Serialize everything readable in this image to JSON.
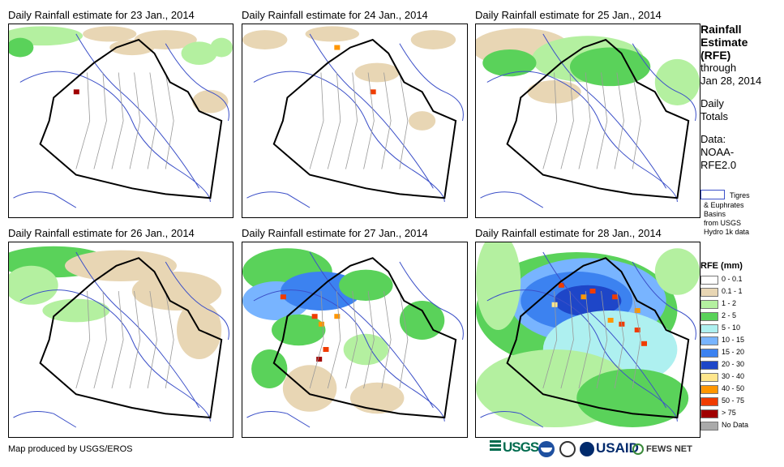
{
  "panels": [
    {
      "title": "Daily Rainfall estimate for 23 Jan., 2014",
      "day": 23
    },
    {
      "title": "Daily Rainfall estimate for 24 Jan., 2014",
      "day": 24
    },
    {
      "title": "Daily Rainfall estimate for 25 Jan., 2014",
      "day": 25
    },
    {
      "title": "Daily Rainfall estimate for 26 Jan., 2014",
      "day": 26
    },
    {
      "title": "Daily Rainfall estimate for 27 Jan., 2014",
      "day": 27
    },
    {
      "title": "Daily Rainfall estimate for 28 Jan., 2014",
      "day": 28
    }
  ],
  "side": {
    "title_line1": "Rainfall",
    "title_line2": "Estimate",
    "title_line3": "(RFE)",
    "through": "through",
    "date": "Jan 28, 2014",
    "daily": "Daily",
    "totals": "Totals",
    "data_label": "Data:",
    "data_src1": "NOAA-",
    "data_src2": "RFE2.0",
    "basins_line1": "Tigres",
    "basins_line2": "& Euphrates",
    "basins_line3": "Basins",
    "basins_line4": "from USGS",
    "basins_line5": "Hydro 1k data",
    "legend_title": "RFE (mm)"
  },
  "legend": [
    {
      "label": "0 - 0.1",
      "color": "#ffffff"
    },
    {
      "label": "0.1 - 1",
      "color": "#e8d6b4"
    },
    {
      "label": "1 - 2",
      "color": "#b4f0a0"
    },
    {
      "label": "2 - 5",
      "color": "#5ad25a"
    },
    {
      "label": "5 - 10",
      "color": "#aef0f0"
    },
    {
      "label": "10 - 15",
      "color": "#78b4ff"
    },
    {
      "label": "15 - 20",
      "color": "#3c82f0"
    },
    {
      "label": "20 - 30",
      "color": "#1e46c8"
    },
    {
      "label": "30 - 40",
      "color": "#ffe68c"
    },
    {
      "label": "40 - 50",
      "color": "#ff9600"
    },
    {
      "label": "50 - 75",
      "color": "#f03c00"
    },
    {
      "label": "> 75",
      "color": "#a00000"
    },
    {
      "label": "No Data",
      "color": "#aaaaaa"
    }
  ],
  "footer": {
    "credit": "Map produced by USGS/EROS",
    "logo_usgs": "USGS",
    "logo_usaid": "USAID",
    "logo_fews": "FEWS NET"
  }
}
